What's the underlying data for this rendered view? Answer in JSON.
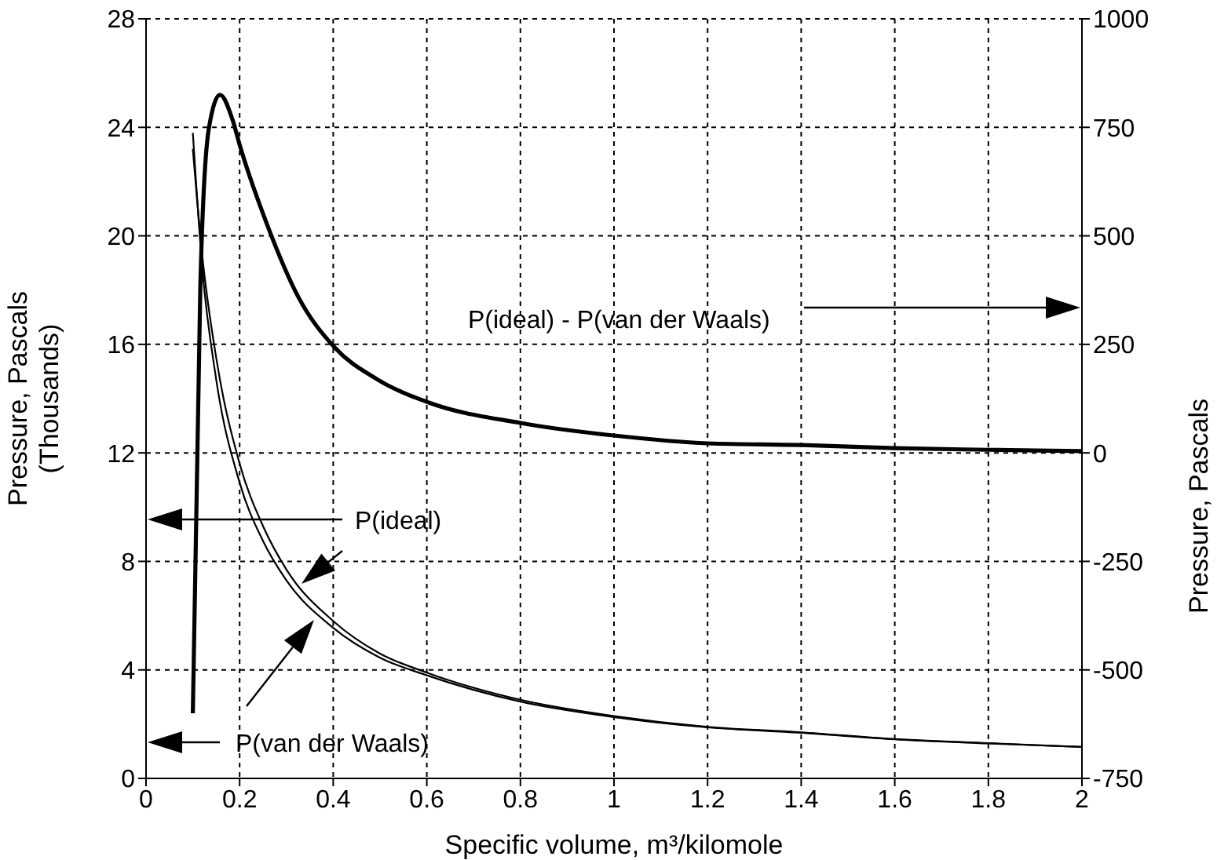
{
  "chart_data": {
    "type": "line",
    "xlabel": "Specific volume, m³/kilomole",
    "ylabel": "Pressure, Pascals\n(Thousands)",
    "y2label": "Pressure, Pascals",
    "xlim": [
      0,
      2
    ],
    "xticks": [
      0,
      0.2,
      0.4,
      0.6,
      0.8,
      1,
      1.2,
      1.4,
      1.6,
      1.8,
      2
    ],
    "ylim": [
      0,
      28
    ],
    "yticks": [
      0,
      4,
      8,
      12,
      16,
      20,
      24,
      28
    ],
    "y2lim": [
      -750,
      1000
    ],
    "y2ticks": [
      -750,
      -500,
      -250,
      0,
      250,
      500,
      750,
      1000
    ],
    "grid": true,
    "line_style": "solid",
    "marker": "none",
    "series": [
      {
        "color": "#000000",
        "x": [
          0.1,
          0.12,
          0.15,
          0.2,
          0.25,
          0.3,
          0.4,
          0.5,
          0.6,
          0.8,
          1.0,
          1.2,
          1.4,
          1.6,
          1.8,
          2.0
        ],
        "values": [
          23.2,
          19.3,
          15.5,
          11.6,
          9.3,
          7.7,
          5.8,
          4.6,
          3.9,
          2.9,
          2.3,
          1.9,
          1.7,
          1.45,
          1.3,
          1.16
        ]
      },
      {
        "color": "#000000",
        "x": [
          0.1,
          0.12,
          0.15,
          0.2,
          0.25,
          0.3,
          0.4,
          0.5,
          0.6,
          0.8,
          1.0,
          1.2,
          1.4,
          1.6,
          1.8,
          2.0
        ],
        "values": [
          23.8,
          18.85,
          14.7,
          10.9,
          8.75,
          7.3,
          5.55,
          4.45,
          3.8,
          2.83,
          2.26,
          1.88,
          1.68,
          1.44,
          1.29,
          1.16
        ]
      },
      {
        "color": "#000000",
        "axis": "y2",
        "x": [
          0.1,
          0.116,
          0.134,
          0.158,
          0.185,
          0.2,
          0.258,
          0.326,
          0.403,
          0.493,
          0.604,
          0.8,
          1.0,
          1.2,
          1.4,
          1.6,
          1.8,
          2.0
        ],
        "values": [
          -600,
          384,
          746,
          825,
          767,
          710,
          528,
          358,
          243,
          170,
          116,
          69,
          40,
          22,
          18,
          11,
          7,
          4
        ]
      }
    ],
    "annotations": [
      "P(ideal) - P(van der Waals)",
      "P(ideal)",
      "P(van der Waals)"
    ]
  }
}
